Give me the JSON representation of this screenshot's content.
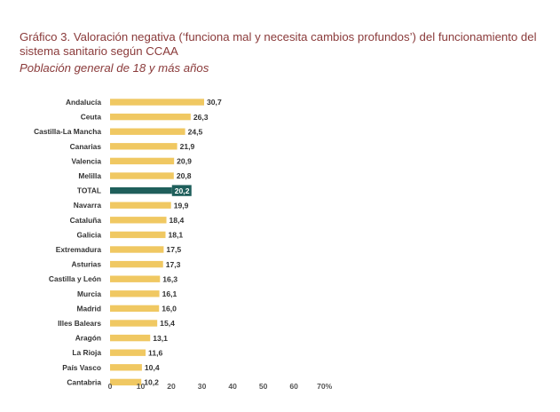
{
  "title": "Gráfico 3. Valoración negativa (‘funciona mal y necesita cambios profundos’) del funcionamiento del sistema sanitario según CCAA",
  "subtitle": "Población general de 18 y más años",
  "chart_data": {
    "type": "bar",
    "orientation": "horizontal",
    "categories": [
      "Andalucía",
      "Ceuta",
      "Castilla-La Mancha",
      "Canarias",
      "Valencia",
      "Melilla",
      "TOTAL",
      "Navarra",
      "Cataluña",
      "Galicia",
      "Extremadura",
      "Asturias",
      "Castilla y León",
      "Murcia",
      "Madrid",
      "Illes Balears",
      "Aragón",
      "La Rioja",
      "País Vasco",
      "Cantabria"
    ],
    "values": [
      30.7,
      26.3,
      24.5,
      21.9,
      20.9,
      20.8,
      20.2,
      19.9,
      18.4,
      18.1,
      17.5,
      17.3,
      16.3,
      16.1,
      16.0,
      15.4,
      13.1,
      11.6,
      10.4,
      10.2
    ],
    "value_labels": [
      "30,7",
      "26,3",
      "24,5",
      "21,9",
      "20,9",
      "20,8",
      "20,2",
      "19,9",
      "18,4",
      "18,1",
      "17,5",
      "17,3",
      "16,3",
      "16,1",
      "16,0",
      "15,4",
      "13,1",
      "11,6",
      "10,4",
      "10,2"
    ],
    "highlight": "TOTAL",
    "xlim": [
      0,
      70
    ],
    "x_ticks": [
      0,
      10,
      20,
      30,
      40,
      50,
      60,
      70
    ],
    "x_tick_labels": [
      "0",
      "10",
      "20",
      "30",
      "40",
      "50",
      "60",
      "70%"
    ],
    "grid": false,
    "legend": "none",
    "colors": {
      "bar": "#f0c862",
      "highlight": "#1f5f5b",
      "text": "#333333",
      "title": "#8a3a3a"
    }
  }
}
